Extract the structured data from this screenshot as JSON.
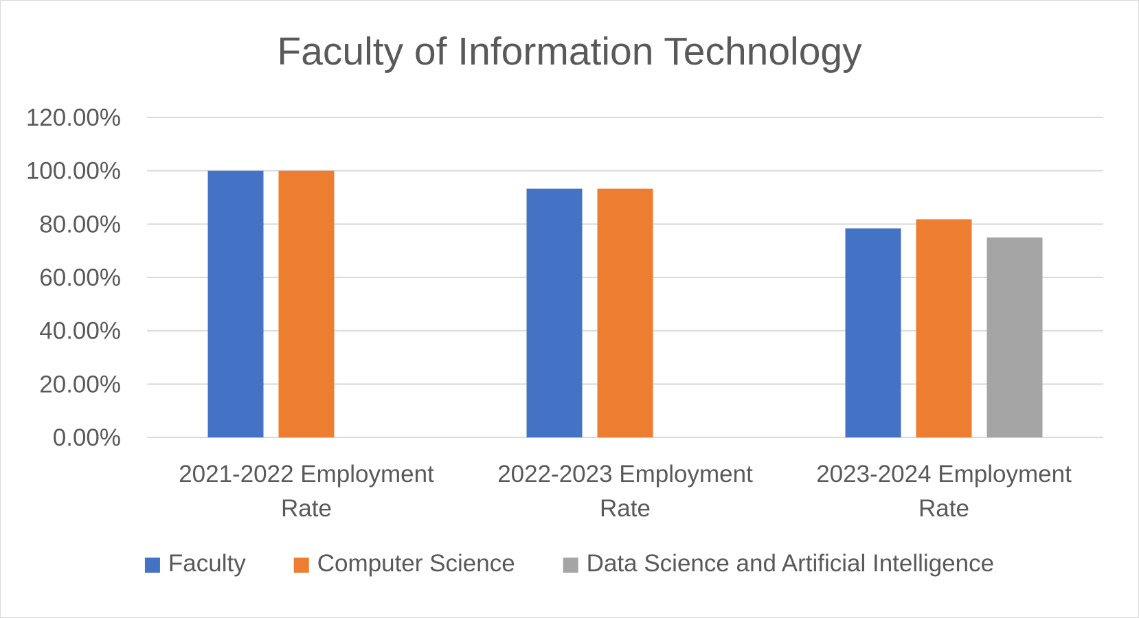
{
  "chart_data": {
    "type": "bar",
    "title": "Faculty of Information Technology",
    "xlabel": "",
    "ylabel": "",
    "categories": [
      [
        "2021-2022 Employment",
        "Rate"
      ],
      [
        "2022-2023 Employment",
        "Rate"
      ],
      [
        "2023-2024 Employment",
        "Rate"
      ]
    ],
    "series": [
      {
        "name": "Faculty",
        "color": "#4472c4",
        "values": [
          100,
          93.3,
          78.4
        ]
      },
      {
        "name": "Computer Science",
        "color": "#ed7d31",
        "values": [
          100,
          93.3,
          81.8
        ]
      },
      {
        "name": "Data Science and Artificial Intelligence",
        "color": "#a5a5a5",
        "values": [
          null,
          null,
          75.0
        ]
      }
    ],
    "ylim": [
      0,
      120
    ],
    "yticks": [
      0,
      20,
      40,
      60,
      80,
      100,
      120
    ],
    "ytick_labels": [
      "0.00%",
      "20.00%",
      "40.00%",
      "60.00%",
      "80.00%",
      "100.00%",
      "120.00%"
    ],
    "grid": true,
    "gridline_color": "#d9d9d9",
    "legend_position": "bottom"
  }
}
